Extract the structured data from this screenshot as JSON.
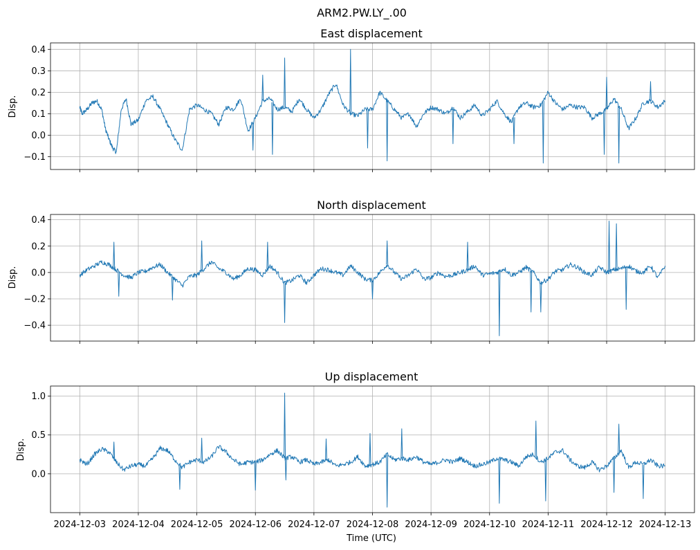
{
  "figure": {
    "suptitle": "ARM2.PW.LY_.00",
    "xlabel": "Time (UTC)",
    "line_color": "#1f77b4",
    "grid_color": "#b0b0b0"
  },
  "chart_data": [
    {
      "type": "line",
      "title": "East displacement",
      "ylabel": "Disp.",
      "xlabel": "",
      "x_range": [
        "2024-12-02T12:00",
        "2024-12-13T12:00"
      ],
      "x_ticks": [
        "2024-12-03",
        "2024-12-04",
        "2024-12-05",
        "2024-12-06",
        "2024-12-07",
        "2024-12-08",
        "2024-12-09",
        "2024-12-10",
        "2024-12-11",
        "2024-12-12",
        "2024-12-13"
      ],
      "ylim": [
        -0.16,
        0.43
      ],
      "y_ticks": [
        -0.1,
        0.0,
        0.1,
        0.2,
        0.3,
        0.4
      ],
      "y_tick_labels": [
        "−0.1",
        "0.0",
        "0.1",
        "0.2",
        "0.3",
        "0.4"
      ],
      "grid": true,
      "series": [
        {
          "x": [
            "2024-12-03T00:00",
            "2024-12-03T01:00",
            "2024-12-03T03:00",
            "2024-12-03T05:00",
            "2024-12-03T07:00",
            "2024-12-03T09:00",
            "2024-12-03T10:30",
            "2024-12-03T12:00",
            "2024-12-03T13:30",
            "2024-12-03T15:00",
            "2024-12-03T17:00",
            "2024-12-03T19:00",
            "2024-12-03T21:00",
            "2024-12-04T00:00",
            "2024-12-04T03:00",
            "2024-12-04T06:00",
            "2024-12-04T09:00",
            "2024-12-04T12:00",
            "2024-12-04T15:00",
            "2024-12-04T18:00",
            "2024-12-04T21:00",
            "2024-12-05T00:00",
            "2024-12-05T03:00",
            "2024-12-05T06:00",
            "2024-12-05T09:00",
            "2024-12-05T12:00",
            "2024-12-05T15:00",
            "2024-12-05T18:00",
            "2024-12-05T21:00",
            "2024-12-06T00:00",
            "2024-12-06T03:00",
            "2024-12-06T06:00",
            "2024-12-06T09:00",
            "2024-12-06T12:00",
            "2024-12-06T15:00",
            "2024-12-06T18:00",
            "2024-12-06T21:00",
            "2024-12-07T00:00",
            "2024-12-07T03:00",
            "2024-12-07T06:00",
            "2024-12-07T09:00",
            "2024-12-07T12:00",
            "2024-12-07T15:00",
            "2024-12-07T18:00",
            "2024-12-07T21:00",
            "2024-12-08T00:00",
            "2024-12-08T03:00",
            "2024-12-08T06:00",
            "2024-12-08T09:00",
            "2024-12-08T12:00",
            "2024-12-08T15:00",
            "2024-12-08T18:00",
            "2024-12-08T21:00",
            "2024-12-09T00:00",
            "2024-12-09T03:00",
            "2024-12-09T06:00",
            "2024-12-09T09:00",
            "2024-12-09T12:00",
            "2024-12-09T15:00",
            "2024-12-09T18:00",
            "2024-12-09T21:00",
            "2024-12-10T00:00",
            "2024-12-10T03:00",
            "2024-12-10T06:00",
            "2024-12-10T09:00",
            "2024-12-10T12:00",
            "2024-12-10T15:00",
            "2024-12-10T18:00",
            "2024-12-10T21:00",
            "2024-12-11T00:00",
            "2024-12-11T03:00",
            "2024-12-11T06:00",
            "2024-12-11T09:00",
            "2024-12-11T12:00",
            "2024-12-11T15:00",
            "2024-12-11T18:00",
            "2024-12-11T21:00",
            "2024-12-12T00:00",
            "2024-12-12T03:00",
            "2024-12-12T06:00",
            "2024-12-12T09:00",
            "2024-12-12T12:00",
            "2024-12-12T15:00",
            "2024-12-12T18:00",
            "2024-12-12T21:00",
            "2024-12-13T00:00"
          ],
          "y": [
            0.13,
            0.1,
            0.12,
            0.15,
            0.16,
            0.12,
            0.03,
            -0.02,
            -0.06,
            -0.08,
            0.12,
            0.17,
            0.05,
            0.07,
            0.16,
            0.18,
            0.12,
            0.05,
            -0.02,
            -0.07,
            0.12,
            0.14,
            0.12,
            0.1,
            0.05,
            0.13,
            0.12,
            0.17,
            0.02,
            0.08,
            0.16,
            0.17,
            0.12,
            0.13,
            0.11,
            0.17,
            0.12,
            0.08,
            0.12,
            0.19,
            0.24,
            0.14,
            0.1,
            0.09,
            0.12,
            0.12,
            0.2,
            0.16,
            0.12,
            0.08,
            0.1,
            0.04,
            0.1,
            0.13,
            0.12,
            0.1,
            0.13,
            0.08,
            0.11,
            0.14,
            0.09,
            0.12,
            0.16,
            0.1,
            0.06,
            0.13,
            0.15,
            0.13,
            0.14,
            0.2,
            0.15,
            0.12,
            0.14,
            0.13,
            0.13,
            0.08,
            0.1,
            0.12,
            0.17,
            0.12,
            0.03,
            0.08,
            0.15,
            0.16,
            0.13,
            0.16
          ],
          "spikes": [
            {
              "x": "2024-12-06T12:00",
              "y": 0.36
            },
            {
              "x": "2024-12-07T15:00",
              "y": 0.4
            },
            {
              "x": "2024-12-06T03:00",
              "y": 0.28
            },
            {
              "x": "2024-12-06T07:00",
              "y": -0.09
            },
            {
              "x": "2024-12-05T23:00",
              "y": -0.07
            },
            {
              "x": "2024-12-07T22:00",
              "y": -0.06
            },
            {
              "x": "2024-12-08T06:00",
              "y": -0.12
            },
            {
              "x": "2024-12-09T09:00",
              "y": -0.04
            },
            {
              "x": "2024-12-10T10:00",
              "y": -0.04
            },
            {
              "x": "2024-12-10T22:00",
              "y": -0.13
            },
            {
              "x": "2024-12-12T00:00",
              "y": 0.27
            },
            {
              "x": "2024-12-11T23:00",
              "y": -0.09
            },
            {
              "x": "2024-12-12T05:00",
              "y": -0.13
            },
            {
              "x": "2024-12-12T18:00",
              "y": 0.25
            }
          ]
        }
      ]
    },
    {
      "type": "line",
      "title": "North displacement",
      "ylabel": "Disp.",
      "xlabel": "",
      "x_range": [
        "2024-12-02T12:00",
        "2024-12-13T12:00"
      ],
      "x_ticks": [
        "2024-12-03",
        "2024-12-04",
        "2024-12-05",
        "2024-12-06",
        "2024-12-07",
        "2024-12-08",
        "2024-12-09",
        "2024-12-10",
        "2024-12-11",
        "2024-12-12",
        "2024-12-13"
      ],
      "ylim": [
        -0.52,
        0.44
      ],
      "y_ticks": [
        -0.4,
        -0.2,
        0.0,
        0.2,
        0.4
      ],
      "y_tick_labels": [
        "−0.4",
        "−0.2",
        "0.0",
        "0.2",
        "0.4"
      ],
      "grid": true,
      "series": [
        {
          "x": [
            "2024-12-03T00:00",
            "2024-12-03T03:00",
            "2024-12-03T06:00",
            "2024-12-03T09:00",
            "2024-12-03T12:00",
            "2024-12-03T15:00",
            "2024-12-03T18:00",
            "2024-12-03T21:00",
            "2024-12-04T00:00",
            "2024-12-04T03:00",
            "2024-12-04T06:00",
            "2024-12-04T09:00",
            "2024-12-04T12:00",
            "2024-12-04T15:00",
            "2024-12-04T18:00",
            "2024-12-04T21:00",
            "2024-12-05T00:00",
            "2024-12-05T03:00",
            "2024-12-05T06:00",
            "2024-12-05T09:00",
            "2024-12-05T12:00",
            "2024-12-05T15:00",
            "2024-12-05T18:00",
            "2024-12-05T21:00",
            "2024-12-06T00:00",
            "2024-12-06T03:00",
            "2024-12-06T06:00",
            "2024-12-06T09:00",
            "2024-12-06T12:00",
            "2024-12-06T15:00",
            "2024-12-06T18:00",
            "2024-12-06T21:00",
            "2024-12-07T00:00",
            "2024-12-07T03:00",
            "2024-12-07T06:00",
            "2024-12-07T09:00",
            "2024-12-07T12:00",
            "2024-12-07T15:00",
            "2024-12-07T18:00",
            "2024-12-07T21:00",
            "2024-12-08T00:00",
            "2024-12-08T03:00",
            "2024-12-08T06:00",
            "2024-12-08T09:00",
            "2024-12-08T12:00",
            "2024-12-08T15:00",
            "2024-12-08T18:00",
            "2024-12-08T21:00",
            "2024-12-09T00:00",
            "2024-12-09T03:00",
            "2024-12-09T06:00",
            "2024-12-09T09:00",
            "2024-12-09T12:00",
            "2024-12-09T15:00",
            "2024-12-09T18:00",
            "2024-12-09T21:00",
            "2024-12-10T00:00",
            "2024-12-10T03:00",
            "2024-12-10T06:00",
            "2024-12-10T09:00",
            "2024-12-10T12:00",
            "2024-12-10T15:00",
            "2024-12-10T18:00",
            "2024-12-10T21:00",
            "2024-12-11T00:00",
            "2024-12-11T03:00",
            "2024-12-11T06:00",
            "2024-12-11T09:00",
            "2024-12-11T12:00",
            "2024-12-11T15:00",
            "2024-12-11T18:00",
            "2024-12-11T21:00",
            "2024-12-12T00:00",
            "2024-12-12T03:00",
            "2024-12-12T06:00",
            "2024-12-12T09:00",
            "2024-12-12T12:00",
            "2024-12-12T15:00",
            "2024-12-12T18:00",
            "2024-12-12T21:00",
            "2024-12-13T00:00"
          ],
          "y": [
            -0.02,
            0.02,
            0.05,
            0.08,
            0.06,
            0.02,
            -0.02,
            -0.04,
            0.0,
            0.01,
            0.04,
            0.06,
            0.0,
            -0.05,
            -0.1,
            -0.03,
            -0.02,
            0.03,
            0.08,
            0.03,
            0.0,
            -0.05,
            -0.02,
            0.03,
            0.02,
            -0.02,
            0.05,
            0.0,
            -0.08,
            -0.06,
            -0.02,
            -0.08,
            -0.02,
            0.03,
            0.02,
            0.0,
            -0.02,
            0.05,
            0.0,
            -0.05,
            -0.06,
            0.0,
            0.06,
            0.0,
            -0.05,
            -0.02,
            0.03,
            -0.05,
            -0.04,
            0.0,
            -0.03,
            -0.02,
            0.0,
            0.02,
            0.05,
            -0.02,
            -0.01,
            0.0,
            0.03,
            -0.02,
            0.0,
            0.04,
            0.0,
            -0.08,
            -0.05,
            0.01,
            0.02,
            0.06,
            0.04,
            0.0,
            -0.02,
            0.04,
            0.0,
            0.02,
            0.03,
            0.05,
            0.01,
            0.0,
            0.05,
            -0.04,
            0.05
          ],
          "spikes": [
            {
              "x": "2024-12-03T14:00",
              "y": 0.23
            },
            {
              "x": "2024-12-03T16:00",
              "y": -0.18
            },
            {
              "x": "2024-12-04T14:00",
              "y": -0.21
            },
            {
              "x": "2024-12-05T02:00",
              "y": 0.24
            },
            {
              "x": "2024-12-06T05:00",
              "y": 0.23
            },
            {
              "x": "2024-12-06T12:00",
              "y": -0.38
            },
            {
              "x": "2024-12-08T00:00",
              "y": -0.2
            },
            {
              "x": "2024-12-08T06:00",
              "y": 0.24
            },
            {
              "x": "2024-12-09T15:00",
              "y": 0.23
            },
            {
              "x": "2024-12-10T04:00",
              "y": -0.48
            },
            {
              "x": "2024-12-10T17:00",
              "y": -0.3
            },
            {
              "x": "2024-12-10T21:00",
              "y": -0.3
            },
            {
              "x": "2024-12-12T01:00",
              "y": 0.39
            },
            {
              "x": "2024-12-12T04:00",
              "y": 0.37
            },
            {
              "x": "2024-12-12T08:00",
              "y": -0.28
            }
          ]
        }
      ]
    },
    {
      "type": "line",
      "title": "Up displacement",
      "ylabel": "Disp.",
      "xlabel": "Time (UTC)",
      "x_range": [
        "2024-12-02T12:00",
        "2024-12-13T12:00"
      ],
      "x_ticks": [
        "2024-12-03",
        "2024-12-04",
        "2024-12-05",
        "2024-12-06",
        "2024-12-07",
        "2024-12-08",
        "2024-12-09",
        "2024-12-10",
        "2024-12-11",
        "2024-12-12",
        "2024-12-13"
      ],
      "ylim": [
        -0.5,
        1.13
      ],
      "y_ticks": [
        0.0,
        0.5,
        1.0
      ],
      "y_tick_labels": [
        "0.0",
        "0.5",
        "1.0"
      ],
      "grid": true,
      "series": [
        {
          "x": [
            "2024-12-03T00:00",
            "2024-12-03T03:00",
            "2024-12-03T06:00",
            "2024-12-03T09:00",
            "2024-12-03T12:00",
            "2024-12-03T15:00",
            "2024-12-03T18:00",
            "2024-12-03T21:00",
            "2024-12-04T00:00",
            "2024-12-04T03:00",
            "2024-12-04T06:00",
            "2024-12-04T09:00",
            "2024-12-04T12:00",
            "2024-12-04T15:00",
            "2024-12-04T18:00",
            "2024-12-04T21:00",
            "2024-12-05T00:00",
            "2024-12-05T03:00",
            "2024-12-05T06:00",
            "2024-12-05T09:00",
            "2024-12-05T12:00",
            "2024-12-05T15:00",
            "2024-12-05T18:00",
            "2024-12-05T21:00",
            "2024-12-06T00:00",
            "2024-12-06T03:00",
            "2024-12-06T06:00",
            "2024-12-06T09:00",
            "2024-12-06T12:00",
            "2024-12-06T15:00",
            "2024-12-06T18:00",
            "2024-12-06T21:00",
            "2024-12-07T00:00",
            "2024-12-07T03:00",
            "2024-12-07T06:00",
            "2024-12-07T09:00",
            "2024-12-07T12:00",
            "2024-12-07T15:00",
            "2024-12-07T18:00",
            "2024-12-07T21:00",
            "2024-12-08T00:00",
            "2024-12-08T03:00",
            "2024-12-08T06:00",
            "2024-12-08T09:00",
            "2024-12-08T12:00",
            "2024-12-08T15:00",
            "2024-12-08T18:00",
            "2024-12-08T21:00",
            "2024-12-09T00:00",
            "2024-12-09T03:00",
            "2024-12-09T06:00",
            "2024-12-09T09:00",
            "2024-12-09T12:00",
            "2024-12-09T15:00",
            "2024-12-09T18:00",
            "2024-12-09T21:00",
            "2024-12-10T00:00",
            "2024-12-10T03:00",
            "2024-12-10T06:00",
            "2024-12-10T09:00",
            "2024-12-10T12:00",
            "2024-12-10T15:00",
            "2024-12-10T18:00",
            "2024-12-10T21:00",
            "2024-12-11T00:00",
            "2024-12-11T03:00",
            "2024-12-11T06:00",
            "2024-12-11T09:00",
            "2024-12-11T12:00",
            "2024-12-11T15:00",
            "2024-12-11T18:00",
            "2024-12-11T21:00",
            "2024-12-12T00:00",
            "2024-12-12T03:00",
            "2024-12-12T06:00",
            "2024-12-12T09:00",
            "2024-12-12T12:00",
            "2024-12-12T15:00",
            "2024-12-12T18:00",
            "2024-12-12T21:00",
            "2024-12-13T00:00"
          ],
          "y": [
            0.18,
            0.12,
            0.25,
            0.32,
            0.28,
            0.15,
            0.05,
            0.1,
            0.12,
            0.1,
            0.2,
            0.33,
            0.3,
            0.18,
            0.08,
            0.15,
            0.18,
            0.15,
            0.22,
            0.35,
            0.28,
            0.18,
            0.12,
            0.15,
            0.15,
            0.18,
            0.25,
            0.3,
            0.2,
            0.22,
            0.15,
            0.18,
            0.12,
            0.15,
            0.18,
            0.1,
            0.12,
            0.15,
            0.22,
            0.1,
            0.12,
            0.15,
            0.25,
            0.18,
            0.2,
            0.18,
            0.22,
            0.15,
            0.12,
            0.15,
            0.18,
            0.15,
            0.2,
            0.15,
            0.1,
            0.12,
            0.15,
            0.2,
            0.18,
            0.15,
            0.1,
            0.22,
            0.25,
            0.15,
            0.2,
            0.28,
            0.3,
            0.18,
            0.1,
            0.08,
            0.15,
            0.05,
            0.1,
            0.2,
            0.3,
            0.08,
            0.15,
            0.12,
            0.18,
            0.1,
            0.1
          ],
          "spikes": [
            {
              "x": "2024-12-03T14:00",
              "y": 0.41
            },
            {
              "x": "2024-12-04T17:00",
              "y": -0.2
            },
            {
              "x": "2024-12-05T02:00",
              "y": 0.46
            },
            {
              "x": "2024-12-06T00:00",
              "y": -0.21
            },
            {
              "x": "2024-12-06T12:00",
              "y": 1.04
            },
            {
              "x": "2024-12-06T12:30",
              "y": -0.08
            },
            {
              "x": "2024-12-07T05:00",
              "y": 0.45
            },
            {
              "x": "2024-12-07T23:00",
              "y": 0.52
            },
            {
              "x": "2024-12-08T06:00",
              "y": -0.43
            },
            {
              "x": "2024-12-08T12:00",
              "y": 0.58
            },
            {
              "x": "2024-12-10T04:00",
              "y": -0.38
            },
            {
              "x": "2024-12-10T19:00",
              "y": 0.68
            },
            {
              "x": "2024-12-10T23:00",
              "y": -0.35
            },
            {
              "x": "2024-12-12T05:00",
              "y": 0.64
            },
            {
              "x": "2024-12-12T03:00",
              "y": -0.24
            },
            {
              "x": "2024-12-12T15:00",
              "y": -0.32
            }
          ]
        }
      ]
    }
  ]
}
